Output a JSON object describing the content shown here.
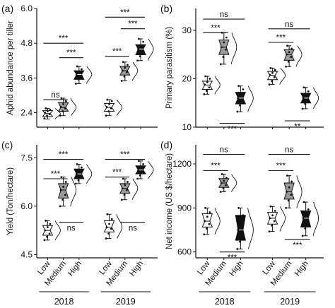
{
  "figure": {
    "x_groups": [
      {
        "year": "2018",
        "levels": [
          "Low",
          "Medium",
          "High"
        ]
      },
      {
        "year": "2019",
        "levels": [
          "Low",
          "Medium",
          "High"
        ]
      }
    ],
    "colors": {
      "Low": "#ffffff",
      "Medium": "#9a9a9a",
      "High": "#111111",
      "stroke": "#111111",
      "dots": "#111111"
    }
  },
  "chart_data": [
    {
      "panel": "(a)",
      "type": "box",
      "title": "",
      "xlabel": "",
      "ylabel": "Aphid abundance per tiller",
      "ylim": [
        1.9,
        6.0
      ],
      "yticks": [
        "2.4",
        "3.6",
        "4.8",
        "6.0"
      ],
      "ytick_values": [
        2.4,
        3.6,
        4.8,
        6.0
      ],
      "categories": [
        "2018 Low",
        "2018 Medium",
        "2018 High",
        "2019 Low",
        "2019 Medium",
        "2019 High"
      ],
      "series": [
        {
          "group": "2018",
          "level": "Low",
          "q1": 2.27,
          "median": 2.37,
          "q3": 2.47,
          "whisker_low": 2.18,
          "whisker_high": 2.55,
          "points": [
            2.2,
            2.3,
            2.35,
            2.4,
            2.45,
            2.5,
            2.55
          ]
        },
        {
          "group": "2018",
          "level": "Medium",
          "q1": 2.45,
          "median": 2.58,
          "q3": 2.75,
          "whisker_low": 2.3,
          "whisker_high": 2.9,
          "points": [
            2.3,
            2.45,
            2.55,
            2.6,
            2.7,
            2.8,
            2.9
          ]
        },
        {
          "group": "2018",
          "level": "High",
          "q1": 3.55,
          "median": 3.72,
          "q3": 3.85,
          "whisker_low": 3.4,
          "whisker_high": 4.0,
          "points": [
            3.4,
            3.55,
            3.65,
            3.7,
            3.8,
            3.9,
            4.0
          ]
        },
        {
          "group": "2019",
          "level": "Low",
          "q1": 2.45,
          "median": 2.58,
          "q3": 2.72,
          "whisker_low": 2.3,
          "whisker_high": 2.85,
          "points": [
            2.3,
            2.45,
            2.55,
            2.6,
            2.7,
            2.8,
            2.85
          ]
        },
        {
          "group": "2019",
          "level": "Medium",
          "q1": 3.7,
          "median": 3.85,
          "q3": 4.0,
          "whisker_low": 3.5,
          "whisker_high": 4.15,
          "points": [
            3.5,
            3.65,
            3.8,
            3.85,
            3.95,
            4.05,
            4.15
          ]
        },
        {
          "group": "2019",
          "level": "High",
          "q1": 4.4,
          "median": 4.6,
          "q3": 4.75,
          "whisker_low": 4.2,
          "whisker_high": 4.95,
          "points": [
            4.2,
            4.35,
            4.5,
            4.6,
            4.7,
            4.85,
            4.95
          ]
        }
      ],
      "annotations": [
        {
          "text": "ns",
          "from": 0,
          "to": 1,
          "y": 2.85,
          "pos": "above"
        },
        {
          "text": "***",
          "from": 1,
          "to": 2,
          "y": 4.3,
          "pos": "above"
        },
        {
          "text": "***",
          "from": 0,
          "to": 2,
          "y": 4.8,
          "pos": "above"
        },
        {
          "text": "***",
          "from": 3,
          "to": 4,
          "y": 4.35,
          "pos": "above"
        },
        {
          "text": "***",
          "from": 4,
          "to": 5,
          "y": 5.3,
          "pos": "above"
        },
        {
          "text": "***",
          "from": 3,
          "to": 5,
          "y": 5.7,
          "pos": "above"
        }
      ]
    },
    {
      "panel": "(b)",
      "type": "box",
      "title": "",
      "xlabel": "",
      "ylabel": "Primary parasitism (%)",
      "ylim": [
        10,
        34.5
      ],
      "yticks": [
        "10",
        "20",
        "30"
      ],
      "ytick_values": [
        10,
        20,
        30
      ],
      "categories": [
        "2018 Low",
        "2018 Medium",
        "2018 High",
        "2019 Low",
        "2019 Medium",
        "2019 High"
      ],
      "series": [
        {
          "group": "2018",
          "level": "Low",
          "q1": 17.8,
          "median": 18.7,
          "q3": 19.5,
          "whisker_low": 16.8,
          "whisker_high": 20.5,
          "points": [
            16.8,
            17.5,
            18.2,
            18.8,
            19.3,
            20.0,
            20.5
          ]
        },
        {
          "group": "2018",
          "level": "Medium",
          "q1": 25.0,
          "median": 26.5,
          "q3": 28.0,
          "whisker_low": 23.0,
          "whisker_high": 29.5,
          "points": [
            23.0,
            24.5,
            26.0,
            26.5,
            27.5,
            28.5,
            29.5
          ]
        },
        {
          "group": "2018",
          "level": "High",
          "q1": 14.8,
          "median": 16.0,
          "q3": 17.2,
          "whisker_low": 13.2,
          "whisker_high": 18.5,
          "points": [
            13.2,
            14.5,
            15.5,
            16.0,
            16.8,
            17.8,
            18.5
          ]
        },
        {
          "group": "2019",
          "level": "Low",
          "q1": 19.8,
          "median": 20.7,
          "q3": 21.5,
          "whisker_low": 18.8,
          "whisker_high": 22.2,
          "points": [
            18.8,
            19.5,
            20.3,
            20.8,
            21.2,
            21.8,
            22.2
          ]
        },
        {
          "group": "2019",
          "level": "Medium",
          "q1": 23.8,
          "median": 25.0,
          "q3": 26.0,
          "whisker_low": 22.5,
          "whisker_high": 26.8,
          "points": [
            22.5,
            23.5,
            24.5,
            25.0,
            25.5,
            26.2,
            26.8
          ]
        },
        {
          "group": "2019",
          "level": "High",
          "q1": 15.0,
          "median": 16.0,
          "q3": 17.0,
          "whisker_low": 13.8,
          "whisker_high": 18.2,
          "points": [
            13.8,
            14.8,
            15.5,
            16.0,
            16.6,
            17.4,
            18.2
          ]
        }
      ],
      "annotations": [
        {
          "text": "***",
          "from": 0,
          "to": 1,
          "y": 29.5,
          "pos": "above"
        },
        {
          "text": "ns",
          "from": 0,
          "to": 2,
          "y": 32.3,
          "pos": "above"
        },
        {
          "text": "***",
          "from": 1,
          "to": 2,
          "y": 10.8,
          "pos": "below"
        },
        {
          "text": "***",
          "from": 3,
          "to": 4,
          "y": 27.5,
          "pos": "above"
        },
        {
          "text": "ns",
          "from": 3,
          "to": 5,
          "y": 30.3,
          "pos": "above"
        },
        {
          "text": "**",
          "from": 4,
          "to": 5,
          "y": 11.3,
          "pos": "below"
        }
      ]
    },
    {
      "panel": "(c)",
      "type": "box",
      "title": "",
      "xlabel": "",
      "ylabel": "Yield (Ton/hectare)",
      "ylim": [
        4.4,
        7.9
      ],
      "yticks": [
        "4.5",
        "6.0",
        "7.5"
      ],
      "ytick_values": [
        4.5,
        6.0,
        7.5
      ],
      "categories": [
        "2018 Low",
        "2018 Medium",
        "2018 High",
        "2019 Low",
        "2019 Medium",
        "2019 High"
      ],
      "series": [
        {
          "group": "2018",
          "level": "Low",
          "q1": 5.1,
          "median": 5.25,
          "q3": 5.4,
          "whisker_low": 4.95,
          "whisker_high": 5.55,
          "points": [
            4.95,
            5.05,
            5.15,
            5.25,
            5.35,
            5.45,
            5.55
          ]
        },
        {
          "group": "2018",
          "level": "Medium",
          "q1": 6.25,
          "median": 6.5,
          "q3": 6.7,
          "whisker_low": 6.0,
          "whisker_high": 6.9,
          "points": [
            6.0,
            6.2,
            6.35,
            6.5,
            6.6,
            6.75,
            6.9
          ]
        },
        {
          "group": "2018",
          "level": "High",
          "q1": 6.85,
          "median": 7.0,
          "q3": 7.15,
          "whisker_low": 6.7,
          "whisker_high": 7.3,
          "points": [
            6.7,
            6.8,
            6.95,
            7.0,
            7.1,
            7.2,
            7.3
          ]
        },
        {
          "group": "2019",
          "level": "Low",
          "q1": 5.2,
          "median": 5.35,
          "q3": 5.55,
          "whisker_low": 5.0,
          "whisker_high": 5.75,
          "points": [
            5.0,
            5.15,
            5.3,
            5.35,
            5.45,
            5.6,
            5.75
          ]
        },
        {
          "group": "2019",
          "level": "Medium",
          "q1": 6.4,
          "median": 6.55,
          "q3": 6.7,
          "whisker_low": 6.2,
          "whisker_high": 6.85,
          "points": [
            6.2,
            6.35,
            6.5,
            6.55,
            6.65,
            6.75,
            6.85
          ]
        },
        {
          "group": "2019",
          "level": "High",
          "q1": 7.0,
          "median": 7.12,
          "q3": 7.25,
          "whisker_low": 6.85,
          "whisker_high": 7.4,
          "points": [
            6.85,
            6.95,
            7.05,
            7.1,
            7.2,
            7.3,
            7.4
          ]
        }
      ],
      "annotations": [
        {
          "text": "***",
          "from": 0,
          "to": 1,
          "y": 6.85,
          "pos": "above"
        },
        {
          "text": "***",
          "from": 0,
          "to": 2,
          "y": 7.45,
          "pos": "above"
        },
        {
          "text": "ns",
          "from": 1,
          "to": 2,
          "y": 5.5,
          "pos": "below"
        },
        {
          "text": "***",
          "from": 3,
          "to": 4,
          "y": 6.9,
          "pos": "above"
        },
        {
          "text": "***",
          "from": 3,
          "to": 5,
          "y": 7.45,
          "pos": "above"
        },
        {
          "text": "ns",
          "from": 4,
          "to": 5,
          "y": 5.5,
          "pos": "below"
        }
      ]
    },
    {
      "panel": "(d)",
      "type": "box",
      "title": "",
      "xlabel": "",
      "ylabel": "Net income (US $/hectare)",
      "ylim": [
        560,
        1330
      ],
      "yticks": [
        "600",
        "900",
        "1200"
      ],
      "ytick_values": [
        600,
        900,
        1200
      ],
      "categories": [
        "2018 Low",
        "2018 Medium",
        "2018 High",
        "2019 Low",
        "2019 Medium",
        "2019 High"
      ],
      "series": [
        {
          "group": "2018",
          "level": "Low",
          "q1": 770,
          "median": 810,
          "q3": 860,
          "whisker_low": 720,
          "whisker_high": 900,
          "points": [
            720,
            760,
            790,
            810,
            840,
            870,
            900
          ]
        },
        {
          "group": "2018",
          "level": "Medium",
          "q1": 1040,
          "median": 1070,
          "q3": 1100,
          "whisker_low": 1010,
          "whisker_high": 1130,
          "points": [
            1010,
            1035,
            1055,
            1070,
            1085,
            1105,
            1130
          ]
        },
        {
          "group": "2018",
          "level": "High",
          "q1": 680,
          "median": 750,
          "q3": 850,
          "whisker_low": 620,
          "whisker_high": 900,
          "points": [
            620,
            670,
            720,
            750,
            800,
            850,
            900
          ]
        },
        {
          "group": "2019",
          "level": "Low",
          "q1": 790,
          "median": 830,
          "q3": 870,
          "whisker_low": 740,
          "whisker_high": 910,
          "points": [
            740,
            780,
            810,
            830,
            850,
            880,
            910
          ]
        },
        {
          "group": "2019",
          "level": "Medium",
          "q1": 960,
          "median": 1010,
          "q3": 1070,
          "whisker_low": 900,
          "whisker_high": 1120,
          "points": [
            900,
            950,
            990,
            1010,
            1040,
            1080,
            1120
          ]
        },
        {
          "group": "2019",
          "level": "High",
          "q1": 770,
          "median": 830,
          "q3": 880,
          "whisker_low": 710,
          "whisker_high": 940,
          "points": [
            710,
            760,
            800,
            830,
            855,
            890,
            940
          ]
        }
      ],
      "annotations": [
        {
          "text": "***",
          "from": 0,
          "to": 1,
          "y": 1155,
          "pos": "above"
        },
        {
          "text": "ns",
          "from": 0,
          "to": 2,
          "y": 1265,
          "pos": "above"
        },
        {
          "text": "***",
          "from": 1,
          "to": 2,
          "y": 600,
          "pos": "below"
        },
        {
          "text": "***",
          "from": 3,
          "to": 4,
          "y": 1155,
          "pos": "above"
        },
        {
          "text": "ns",
          "from": 3,
          "to": 5,
          "y": 1265,
          "pos": "above"
        },
        {
          "text": "***",
          "from": 4,
          "to": 5,
          "y": 685,
          "pos": "below"
        }
      ]
    }
  ]
}
